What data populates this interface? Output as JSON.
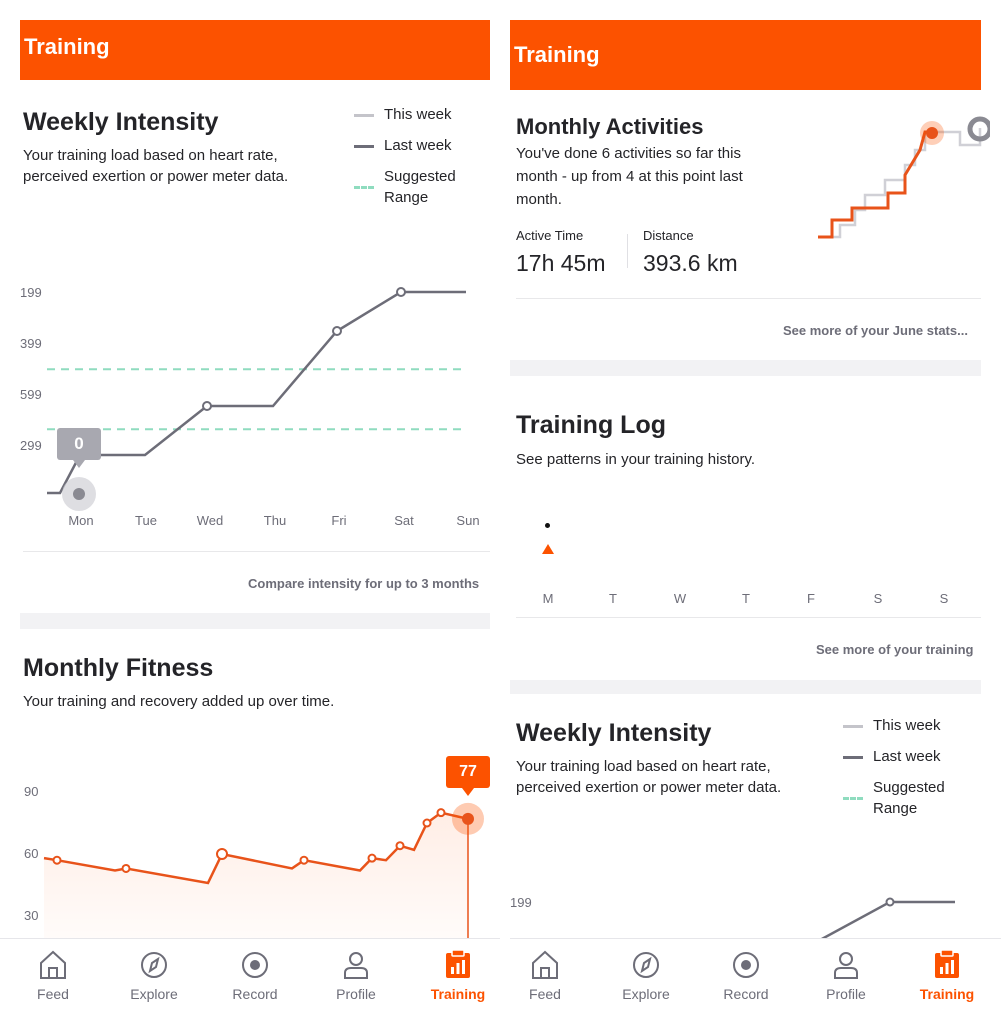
{
  "left": {
    "header": {
      "title": "Training"
    },
    "weekly_intensity": {
      "title": "Weekly Intensity",
      "description_line1": "Your training load based on heart rate,",
      "description_line2": "perceived exertion or power meter data.",
      "legend": {
        "this_week": "This week",
        "last_week": "Last week",
        "suggested_line1": "Suggested",
        "suggested_line2": "Range"
      },
      "y_ticks": [
        "199",
        "399",
        "599",
        "299"
      ],
      "current_value": "0",
      "link": "Compare intensity for up to 3 months"
    },
    "monthly_fitness": {
      "title": "Monthly Fitness",
      "description": "Your training and recovery added up over time.",
      "y_ticks": [
        "90",
        "60",
        "30"
      ],
      "current_value": "77"
    }
  },
  "right": {
    "header": {
      "title": "Training"
    },
    "monthly_activities": {
      "title": "Monthly Activities",
      "description_line1": "You've done 6 activities so far this",
      "description_line2": "month - up from 4 at this point last",
      "description_line3": "month.",
      "active_time_label": "Active Time",
      "active_time_value": "17h 45m",
      "distance_label": "Distance",
      "distance_value": "393.6 km",
      "link": "See more of your June stats..."
    },
    "training_log": {
      "title": "Training Log",
      "description": "See patterns in your training history.",
      "link": "See more of your training"
    },
    "weekly_intensity": {
      "title": "Weekly Intensity",
      "description_line1": "Your training load based on heart rate,",
      "description_line2": "perceived exertion or power meter data.",
      "legend": {
        "this_week": "This week",
        "last_week": "Last week",
        "suggested_line1": "Suggested",
        "suggested_line2": "Range"
      },
      "y_tick": "199"
    }
  },
  "tabbar": {
    "feed": "Feed",
    "explore": "Explore",
    "record": "Record",
    "profile": "Profile",
    "training": "Training"
  },
  "colors": {
    "brand": "#fc5200",
    "last_week_line": "#6d6d78",
    "this_week_line": "#c4c4ca",
    "suggested_range": "#8fdcbf",
    "fitness_line": "#e8531a"
  },
  "chart_data": [
    {
      "type": "line",
      "categories": [
        "Mon",
        "Tue",
        "Wed",
        "Thu",
        "Fri",
        "Sat",
        "Sun"
      ],
      "series": [
        {
          "name": "Last week",
          "values": [
            110,
            210,
            420,
            420,
            880,
            1040,
            1040
          ]
        }
      ],
      "suggested_range": [
        330,
        640
      ],
      "ylim": [
        0,
        1040
      ]
    },
    {
      "type": "area",
      "series": [
        {
          "values": [
            58,
            57,
            52,
            53,
            46,
            60,
            53,
            57,
            52,
            58,
            57,
            64,
            62,
            75,
            80,
            77
          ]
        }
      ],
      "y_ticks": [
        30,
        60,
        90
      ],
      "ylim": [
        20,
        95
      ]
    },
    {
      "type": "line",
      "categories": [
        "M",
        "T",
        "W",
        "T",
        "F",
        "S",
        "S"
      ],
      "title": "Training Log"
    }
  ]
}
